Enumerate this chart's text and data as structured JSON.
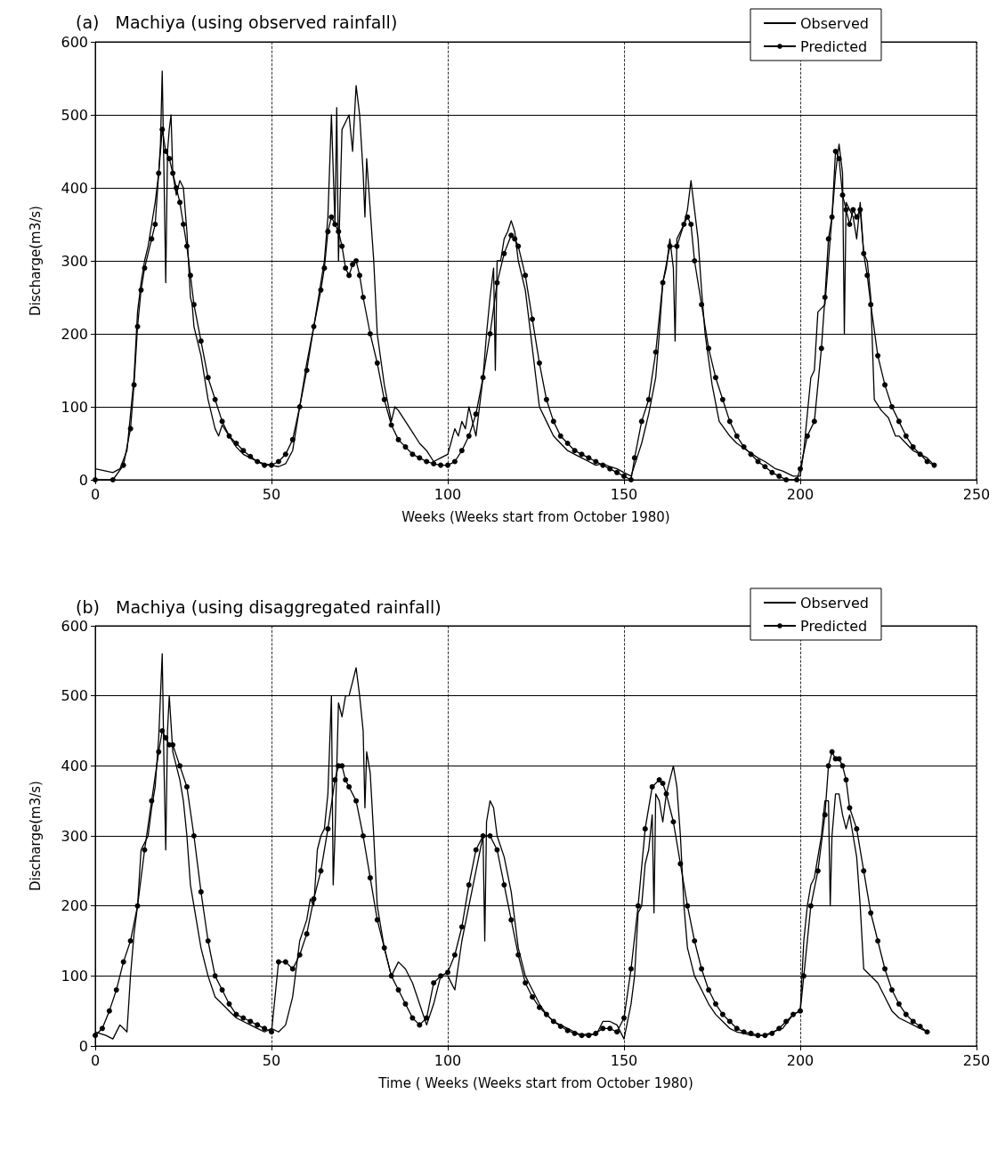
{
  "chart_data": [
    {
      "type": "line",
      "title": "(a)   Machiya (using observed rainfall)",
      "xlabel": "Weeks (Weeks start from October 1980)",
      "ylabel": "Discharge(m3/s)",
      "xlim": [
        0,
        250
      ],
      "xticks": [
        0,
        50,
        100,
        150,
        200,
        250
      ],
      "ylim": [
        0,
        600
      ],
      "yticks": [
        0,
        100,
        200,
        300,
        400,
        500,
        600
      ],
      "grid": true,
      "legend": "top right",
      "line_style": "solid",
      "series": [
        {
          "name": "Observed",
          "color": "#000000",
          "marker": "none",
          "x": [
            0,
            3,
            5,
            7,
            9,
            11,
            12,
            13,
            14,
            15,
            16,
            17,
            18,
            18.5,
            19,
            19.5,
            20,
            20.5,
            21,
            21.5,
            22,
            23,
            24,
            25,
            26,
            27,
            27.5,
            28,
            30,
            32,
            34,
            35,
            36,
            38,
            40,
            42,
            44,
            46,
            48,
            50,
            52,
            54,
            56,
            58,
            60,
            62,
            64,
            65,
            66,
            67,
            68,
            68.5,
            69,
            70,
            71,
            72,
            73,
            74,
            75,
            76,
            76.5,
            77,
            78,
            79,
            80,
            82,
            84,
            85,
            86,
            88,
            90,
            92,
            94,
            96,
            98,
            100,
            102,
            103,
            104,
            105,
            106,
            107,
            108,
            110,
            111,
            112,
            113,
            113.5,
            114,
            115,
            116,
            117,
            118,
            119,
            120,
            122,
            124,
            126,
            128,
            130,
            132,
            134,
            136,
            138,
            140,
            142,
            144,
            146,
            148,
            150,
            152,
            153,
            155,
            157,
            159,
            160,
            161,
            162,
            163,
            164,
            164.5,
            165,
            166,
            167,
            168,
            169,
            170,
            171,
            172,
            173,
            175,
            177,
            180,
            182,
            185,
            188,
            190,
            193,
            195,
            198,
            200,
            201,
            203,
            204,
            205,
            207,
            208,
            209,
            210,
            211,
            212,
            212.5,
            213,
            214,
            215,
            216,
            217,
            218,
            219,
            220,
            221,
            223,
            225,
            227,
            228,
            230,
            232,
            234,
            236,
            238
          ],
          "values": [
            15,
            12,
            10,
            15,
            40,
            140,
            230,
            270,
            300,
            320,
            350,
            380,
            420,
            460,
            560,
            420,
            270,
            450,
            480,
            500,
            420,
            390,
            410,
            400,
            340,
            250,
            240,
            210,
            170,
            110,
            70,
            60,
            75,
            60,
            45,
            35,
            30,
            25,
            22,
            20,
            18,
            22,
            40,
            100,
            160,
            210,
            270,
            300,
            360,
            500,
            350,
            510,
            300,
            480,
            490,
            500,
            450,
            540,
            500,
            420,
            360,
            440,
            370,
            300,
            200,
            130,
            80,
            100,
            95,
            80,
            65,
            50,
            40,
            25,
            30,
            35,
            70,
            60,
            80,
            70,
            100,
            80,
            60,
            140,
            200,
            250,
            290,
            150,
            300,
            300,
            330,
            340,
            355,
            340,
            300,
            260,
            180,
            100,
            80,
            60,
            50,
            40,
            35,
            30,
            25,
            20,
            22,
            18,
            15,
            10,
            5,
            20,
            50,
            90,
            140,
            200,
            270,
            290,
            330,
            290,
            190,
            330,
            340,
            350,
            370,
            410,
            370,
            330,
            260,
            200,
            130,
            80,
            60,
            50,
            40,
            30,
            25,
            15,
            12,
            5,
            5,
            40,
            140,
            150,
            230,
            240,
            300,
            360,
            420,
            460,
            420,
            200,
            380,
            370,
            360,
            330,
            380,
            310,
            300,
            250,
            110,
            95,
            85,
            60,
            60,
            50,
            40,
            35,
            30,
            20
          ]
        },
        {
          "name": "Predicted",
          "color": "#000000",
          "marker": "circle",
          "x": [
            0,
            5,
            8,
            10,
            11,
            12,
            13,
            14,
            16,
            17,
            18,
            19,
            20,
            21,
            22,
            23,
            24,
            25,
            26,
            27,
            28,
            30,
            32,
            34,
            36,
            38,
            40,
            42,
            44,
            46,
            48,
            50,
            52,
            54,
            56,
            58,
            60,
            62,
            64,
            65,
            66,
            67,
            68,
            69,
            70,
            71,
            72,
            73,
            74,
            75,
            76,
            78,
            80,
            82,
            84,
            86,
            88,
            90,
            92,
            94,
            96,
            98,
            100,
            102,
            104,
            106,
            108,
            110,
            112,
            114,
            116,
            118,
            119,
            120,
            122,
            124,
            126,
            128,
            130,
            132,
            134,
            136,
            138,
            140,
            142,
            144,
            146,
            148,
            150,
            152,
            153,
            155,
            157,
            159,
            161,
            163,
            165,
            167,
            168,
            169,
            170,
            172,
            174,
            176,
            178,
            180,
            182,
            184,
            186,
            188,
            190,
            192,
            194,
            196,
            199,
            200,
            202,
            204,
            206,
            207,
            208,
            209,
            210,
            211,
            212,
            213,
            214,
            215,
            216,
            217,
            218,
            219,
            220,
            222,
            224,
            226,
            228,
            230,
            232,
            234,
            236,
            238
          ],
          "values": [
            0,
            0,
            20,
            70,
            130,
            210,
            260,
            290,
            330,
            350,
            420,
            480,
            450,
            440,
            420,
            400,
            380,
            350,
            320,
            280,
            240,
            190,
            140,
            110,
            80,
            60,
            50,
            40,
            32,
            25,
            20,
            20,
            25,
            35,
            55,
            100,
            150,
            210,
            260,
            290,
            340,
            360,
            350,
            340,
            320,
            290,
            280,
            295,
            300,
            280,
            250,
            200,
            160,
            110,
            75,
            55,
            45,
            35,
            30,
            25,
            22,
            20,
            20,
            25,
            40,
            60,
            90,
            140,
            200,
            270,
            310,
            335,
            330,
            320,
            280,
            220,
            160,
            110,
            80,
            60,
            50,
            40,
            35,
            30,
            25,
            20,
            15,
            10,
            5,
            0,
            30,
            80,
            110,
            175,
            270,
            320,
            320,
            350,
            360,
            350,
            300,
            240,
            180,
            140,
            110,
            80,
            60,
            45,
            35,
            25,
            18,
            10,
            5,
            0,
            0,
            15,
            60,
            80,
            180,
            250,
            330,
            360,
            450,
            440,
            390,
            370,
            350,
            370,
            360,
            370,
            310,
            280,
            240,
            170,
            130,
            100,
            80,
            60,
            45,
            35,
            25,
            20
          ]
        }
      ]
    },
    {
      "type": "line",
      "title": "(b)   Machiya (using disaggregated rainfall)",
      "xlabel": "Time ( Weeks (Weeks start from October 1980)",
      "ylabel": "Discharge(m3/s)",
      "xlim": [
        0,
        250
      ],
      "xticks": [
        0,
        50,
        100,
        150,
        200,
        250
      ],
      "ylim": [
        0,
        600
      ],
      "yticks": [
        0,
        100,
        200,
        300,
        400,
        500,
        600
      ],
      "grid": true,
      "legend": "top right",
      "line_style": "solid",
      "series": [
        {
          "name": "Observed",
          "color": "#000000",
          "marker": "none",
          "x": [
            0,
            3,
            5,
            7,
            8,
            9,
            10,
            11,
            12,
            13,
            14,
            15,
            16,
            17,
            18,
            19,
            19.5,
            20,
            20.5,
            21,
            22,
            23,
            24,
            25,
            26,
            27,
            28,
            30,
            32,
            34,
            36,
            38,
            40,
            42,
            44,
            46,
            48,
            50,
            52,
            54,
            56,
            58,
            60,
            61,
            62,
            63,
            64,
            65,
            66,
            67,
            67.5,
            68,
            69,
            70,
            71,
            72,
            73,
            74,
            75,
            76,
            76.5,
            77,
            78,
            79,
            80,
            82,
            84,
            86,
            88,
            90,
            92,
            94,
            96,
            98,
            100,
            102,
            104,
            106,
            108,
            110,
            110.5,
            111,
            112,
            113,
            114,
            116,
            118,
            120,
            122,
            124,
            126,
            128,
            130,
            132,
            134,
            136,
            138,
            140,
            142,
            144,
            146,
            148,
            150,
            152,
            153,
            154,
            155,
            156,
            157,
            158,
            158.5,
            159,
            160,
            161,
            162,
            163,
            164,
            165,
            166,
            167,
            168,
            170,
            172,
            174,
            176,
            178,
            180,
            182,
            184,
            186,
            188,
            190,
            192,
            195,
            198,
            200,
            201,
            202,
            203,
            204,
            205,
            206,
            207,
            208,
            208.5,
            209,
            210,
            211,
            212,
            213,
            214,
            215,
            216,
            217,
            218,
            220,
            222,
            224,
            226,
            228,
            230,
            232,
            234,
            236
          ],
          "values": [
            20,
            15,
            10,
            30,
            25,
            20,
            100,
            160,
            200,
            280,
            290,
            300,
            340,
            370,
            440,
            560,
            400,
            280,
            450,
            500,
            420,
            400,
            380,
            350,
            300,
            230,
            200,
            140,
            100,
            70,
            60,
            50,
            40,
            35,
            30,
            25,
            20,
            25,
            20,
            30,
            70,
            150,
            180,
            210,
            200,
            280,
            300,
            310,
            360,
            500,
            230,
            300,
            490,
            470,
            500,
            500,
            520,
            540,
            500,
            450,
            340,
            420,
            390,
            300,
            200,
            140,
            100,
            120,
            110,
            90,
            60,
            30,
            60,
            100,
            100,
            80,
            150,
            200,
            250,
            300,
            150,
            320,
            350,
            340,
            300,
            270,
            220,
            140,
            100,
            80,
            60,
            45,
            35,
            30,
            25,
            20,
            15,
            18,
            15,
            35,
            35,
            30,
            10,
            60,
            100,
            190,
            200,
            260,
            280,
            330,
            190,
            360,
            350,
            320,
            360,
            380,
            400,
            370,
            300,
            200,
            140,
            100,
            80,
            60,
            45,
            35,
            25,
            20,
            18,
            15,
            15,
            15,
            20,
            25,
            45,
            50,
            150,
            200,
            230,
            240,
            270,
            300,
            350,
            350,
            200,
            300,
            360,
            360,
            330,
            310,
            330,
            300,
            270,
            200,
            110,
            100,
            90,
            70,
            50,
            40,
            35,
            30,
            25,
            20
          ]
        },
        {
          "name": "Predicted",
          "color": "#000000",
          "marker": "circle",
          "x": [
            0,
            2,
            4,
            6,
            8,
            10,
            12,
            14,
            16,
            18,
            19,
            20,
            21,
            22,
            24,
            26,
            28,
            30,
            32,
            34,
            36,
            38,
            40,
            42,
            44,
            46,
            48,
            50,
            52,
            54,
            56,
            58,
            60,
            62,
            64,
            66,
            68,
            69,
            70,
            71,
            72,
            74,
            76,
            78,
            80,
            82,
            84,
            86,
            88,
            90,
            92,
            94,
            96,
            98,
            100,
            102,
            104,
            106,
            108,
            110,
            112,
            114,
            116,
            118,
            120,
            122,
            124,
            126,
            128,
            130,
            132,
            134,
            136,
            138,
            140,
            142,
            144,
            146,
            148,
            150,
            152,
            154,
            156,
            158,
            160,
            161,
            162,
            164,
            166,
            168,
            170,
            172,
            174,
            176,
            178,
            180,
            182,
            184,
            186,
            188,
            190,
            192,
            194,
            196,
            198,
            200,
            201,
            203,
            205,
            207,
            208,
            209,
            210,
            211,
            212,
            213,
            214,
            216,
            218,
            220,
            222,
            224,
            226,
            228,
            230,
            232,
            234,
            236
          ],
          "values": [
            15,
            25,
            50,
            80,
            120,
            150,
            200,
            280,
            350,
            420,
            450,
            440,
            430,
            430,
            400,
            370,
            300,
            220,
            150,
            100,
            80,
            60,
            45,
            40,
            35,
            30,
            25,
            20,
            120,
            120,
            110,
            130,
            160,
            210,
            250,
            310,
            380,
            400,
            400,
            380,
            370,
            350,
            300,
            240,
            180,
            140,
            100,
            80,
            60,
            40,
            30,
            40,
            90,
            100,
            105,
            130,
            170,
            230,
            280,
            300,
            300,
            280,
            230,
            180,
            130,
            90,
            70,
            55,
            45,
            35,
            28,
            22,
            18,
            15,
            15,
            18,
            25,
            25,
            20,
            40,
            110,
            200,
            310,
            370,
            380,
            375,
            360,
            320,
            260,
            200,
            150,
            110,
            80,
            60,
            45,
            35,
            25,
            20,
            18,
            15,
            15,
            18,
            25,
            35,
            45,
            50,
            100,
            200,
            250,
            330,
            400,
            420,
            410,
            410,
            400,
            380,
            340,
            310,
            250,
            190,
            150,
            110,
            80,
            60,
            45,
            35,
            28,
            20
          ]
        }
      ]
    }
  ]
}
